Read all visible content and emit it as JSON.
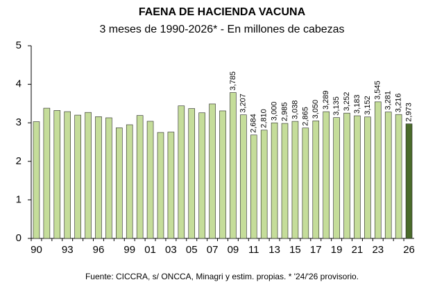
{
  "chart_data": {
    "type": "bar",
    "title": "FAENA DE HACIENDA VACUNA",
    "subtitle": "3 meses de 1990-2026* - En millones de cabezas",
    "footnote": "Fuente: CICCRA, s/ ONCCA, Minagri y estim. propias. * '24/'26 provisorio.",
    "categories": [
      "90",
      null,
      null,
      "93",
      null,
      null,
      "96",
      null,
      null,
      "99",
      null,
      "01",
      null,
      "03",
      null,
      "05",
      null,
      "07",
      null,
      "09",
      null,
      "11",
      null,
      "13",
      null,
      "15",
      null,
      "17",
      null,
      "19",
      null,
      "21",
      null,
      "23",
      null,
      null,
      "26"
    ],
    "values": [
      3.03,
      3.38,
      3.32,
      3.29,
      3.2,
      3.27,
      3.16,
      3.13,
      2.87,
      2.95,
      3.19,
      3.04,
      2.75,
      2.76,
      3.44,
      3.37,
      3.26,
      3.49,
      3.31,
      3.785,
      3.207,
      2.684,
      2.81,
      3.0,
      2.985,
      3.038,
      2.865,
      3.05,
      3.289,
      3.135,
      3.252,
      3.183,
      3.152,
      3.545,
      3.281,
      3.216,
      2.973
    ],
    "value_labels": [
      null,
      null,
      null,
      null,
      null,
      null,
      null,
      null,
      null,
      null,
      null,
      null,
      null,
      null,
      null,
      null,
      null,
      null,
      null,
      "3,785",
      "3,207",
      "2,684",
      "2,810",
      "3,000",
      "2,985",
      "3,038",
      "2,865",
      "3,050",
      "3,289",
      "3,135",
      "3,252",
      "3,183",
      "3,152",
      "3,545",
      "3,281",
      "3,216",
      "2,973"
    ],
    "colors": [
      "#c5dd9a",
      "#c5dd9a",
      "#c5dd9a",
      "#c5dd9a",
      "#c5dd9a",
      "#c5dd9a",
      "#c5dd9a",
      "#c5dd9a",
      "#c5dd9a",
      "#c5dd9a",
      "#c5dd9a",
      "#c5dd9a",
      "#c5dd9a",
      "#c5dd9a",
      "#c5dd9a",
      "#c5dd9a",
      "#c5dd9a",
      "#c5dd9a",
      "#c5dd9a",
      "#c5dd9a",
      "#c5dd9a",
      "#c5dd9a",
      "#c5dd9a",
      "#c5dd9a",
      "#c5dd9a",
      "#c5dd9a",
      "#c5dd9a",
      "#c5dd9a",
      "#c5dd9a",
      "#c5dd9a",
      "#c5dd9a",
      "#c5dd9a",
      "#c5dd9a",
      "#c5dd9a",
      "#c5dd9a",
      "#c5dd9a",
      "#4a6b2a"
    ],
    "ylim": [
      0,
      5
    ],
    "yticks": [
      0,
      1,
      2,
      3,
      4,
      5
    ],
    "grid": false
  }
}
